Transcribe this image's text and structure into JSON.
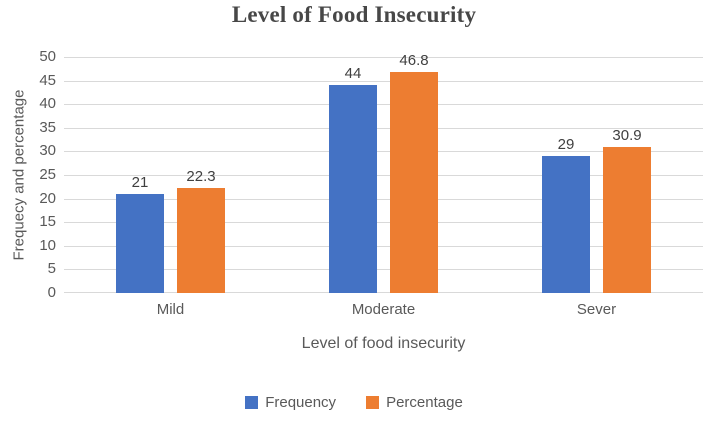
{
  "chart_data": {
    "type": "bar",
    "title": "Level of Food Insecurity",
    "xlabel": "Level of food insecurity",
    "ylabel": "Frequecy and percentage",
    "categories": [
      "Mild",
      "Moderate",
      "Sever"
    ],
    "series": [
      {
        "name": "Frequency",
        "color": "#4472C4",
        "values": [
          21,
          44,
          29
        ]
      },
      {
        "name": "Percentage",
        "color": "#ED7D31",
        "values": [
          22.3,
          46.8,
          30.9
        ]
      }
    ],
    "data_labels": [
      [
        "21",
        "44",
        "29"
      ],
      [
        "22.3",
        "46.8",
        "30.9"
      ]
    ],
    "y_ticks": [
      0,
      5,
      10,
      15,
      20,
      25,
      30,
      35,
      40,
      45,
      50
    ],
    "ylim": [
      0,
      50
    ],
    "grid": true,
    "legend_position": "bottom",
    "colors": {
      "gridline": "#D9D9D9",
      "axis_text": "#595959",
      "data_label_text": "#404040",
      "title_text": "#474747",
      "background": "#FFFFFF"
    }
  }
}
